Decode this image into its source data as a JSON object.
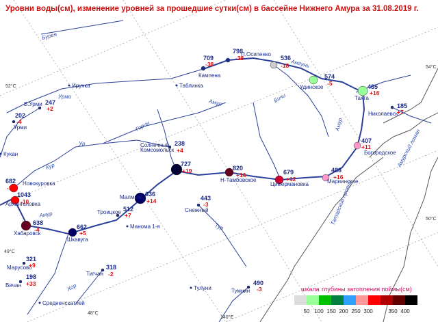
{
  "title": "Уровни воды(см), изменение уровней за прошедшие сутки(см) в бассейне Нижнего Амура за 31.08.2019 г.",
  "stations": [
    {
      "name": "Комсомольск",
      "level": 727,
      "change": "+19"
    },
    {
      "name": "Н-Тамбовское",
      "level": 820,
      "change": "+16"
    },
    {
      "name": "Цимермановка",
      "level": 679,
      "change": "+12"
    },
    {
      "name": "Мариинское",
      "level": 488,
      "change": "+16"
    },
    {
      "name": "Богородское",
      "level": 407,
      "change": "+11"
    },
    {
      "name": "Николаевск",
      "level": 185,
      "change": "+7"
    },
    {
      "name": "Тахта",
      "level": 485,
      "change": "+16"
    },
    {
      "name": "Удинское",
      "level": 574,
      "change": "-5"
    },
    {
      "name": "П.Осипенко",
      "level": 798,
      "change": "-38"
    },
    {
      "name": "Кампена",
      "level": 709,
      "change": "-38"
    },
    {
      "name": null,
      "level": 536,
      "change": "-18"
    },
    {
      "name": "В.Урми",
      "level": 247,
      "change": "+2"
    },
    {
      "name": "Урми",
      "level": 202,
      "change": "-4"
    },
    {
      "name": "Солнечный",
      "level": 238,
      "change": "+4"
    },
    {
      "name": "Новокуровка",
      "level": 682,
      "change": "-5"
    },
    {
      "name": "Архангеловка",
      "level": 1043,
      "change": "-10"
    },
    {
      "name": "Хабаровск",
      "level": 638,
      "change": "-4"
    },
    {
      "name": "Шкавуга",
      "level": 662,
      "change": "+5"
    },
    {
      "name": "Малмыж",
      "level": 636,
      "change": "+14"
    },
    {
      "name": "Троицкое",
      "level": 512,
      "change": "+7"
    },
    {
      "name": "Снежный",
      "level": 443,
      "change": "-3"
    },
    {
      "name": "Марусово",
      "level": 321,
      "change": "+9"
    },
    {
      "name": "Вичан",
      "level": 198,
      "change": "+33"
    },
    {
      "name": "Тигчан",
      "level": 318,
      "change": "-2"
    },
    {
      "name": "Тумнин",
      "level": 490,
      "change": "-3"
    }
  ],
  "places": [
    "Ирунка",
    "Таблинка",
    "Кукан",
    "Манома 1-я",
    "Тулуни",
    "Средненсхатлей"
  ],
  "rivers": [
    "Бурея",
    "Урми",
    "Кур",
    "Ур",
    "Амур",
    "Хор",
    "Горин",
    "Амур",
    "Бичи",
    "Амгунь",
    "Амур",
    "Тур",
    "Татарский пролив",
    "Амурский лиман"
  ],
  "coordinates": [
    "54°C",
    "52°C",
    "50°C",
    "49°C",
    "48°C",
    "140°E"
  ],
  "legend": {
    "title_1": "шкала",
    "title_2": "глубины затопления поймы(см)",
    "ticks": [
      50,
      100,
      150,
      200,
      250,
      300,
      350,
      400
    ],
    "colors": [
      "#dddddd",
      "#99ff99",
      "#00c000",
      "#008040",
      "#30a0ff",
      "#ff9999",
      "#ff0000",
      "#b00000",
      "#600000",
      "#000000"
    ]
  }
}
